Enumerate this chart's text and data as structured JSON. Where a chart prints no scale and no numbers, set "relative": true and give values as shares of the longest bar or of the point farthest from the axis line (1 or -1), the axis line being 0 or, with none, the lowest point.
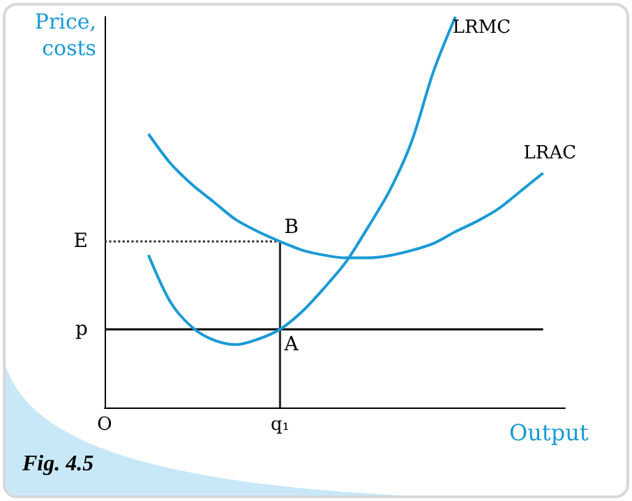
{
  "chart_data": {
    "type": "line",
    "relative": true,
    "xlabel": "Output",
    "ylabel": "Price,\ncosts",
    "categories": [
      "O",
      null,
      null,
      null,
      null,
      null,
      null,
      null,
      "q₁",
      null,
      null,
      null,
      null,
      null,
      null,
      null,
      null,
      null,
      null,
      null,
      null,
      null
    ],
    "grid": false,
    "legend": false,
    "marker": "none",
    "series": [
      {
        "name": "LRAC",
        "color": "#1a9ad6",
        "values": [
          null,
          null,
          0.7,
          0.625,
          0.57,
          0.525,
          0.48,
          0.45,
          0.425,
          0.403,
          0.39,
          0.383,
          0.383,
          0.389,
          0.402,
          0.42,
          0.45,
          0.477,
          0.51,
          0.555,
          0.6,
          null
        ]
      },
      {
        "name": "LRMC",
        "color": "#1a9ad6",
        "values": [
          null,
          null,
          0.39,
          0.27,
          0.205,
          0.172,
          0.161,
          0.175,
          0.2,
          0.245,
          0.305,
          0.372,
          0.46,
          0.555,
          0.68,
          0.86,
          1.0,
          null,
          null,
          null,
          null,
          null
        ]
      },
      {
        "name": "E",
        "color": "#333333",
        "line_style": "dotted",
        "values": [
          0.425,
          0.425,
          0.425,
          0.425,
          0.425,
          0.425,
          0.425,
          0.425,
          0.425,
          null,
          null,
          null,
          null,
          null,
          null,
          null,
          null,
          null,
          null,
          null,
          null,
          null
        ]
      },
      {
        "color": "#333333",
        "line_style": "solid",
        "x": [
          "q₁",
          "q₁"
        ],
        "values": [
          0,
          0.425
        ]
      },
      {
        "name": "p",
        "color": "#000000",
        "line_style": "solid",
        "values": [
          0.2,
          0.2,
          0.2,
          0.2,
          0.2,
          0.2,
          0.2,
          0.2,
          0.2,
          0.2,
          0.2,
          0.2,
          0.2,
          0.2,
          0.2,
          0.2,
          0.2,
          0.2,
          0.2,
          0.2,
          0.2,
          null
        ]
      }
    ],
    "annotations": [
      {
        "text": "B",
        "x": "q₁",
        "y": 0.425
      },
      {
        "text": "A",
        "x": "q₁",
        "y": 0.2
      },
      "Fig. 4.5"
    ]
  }
}
